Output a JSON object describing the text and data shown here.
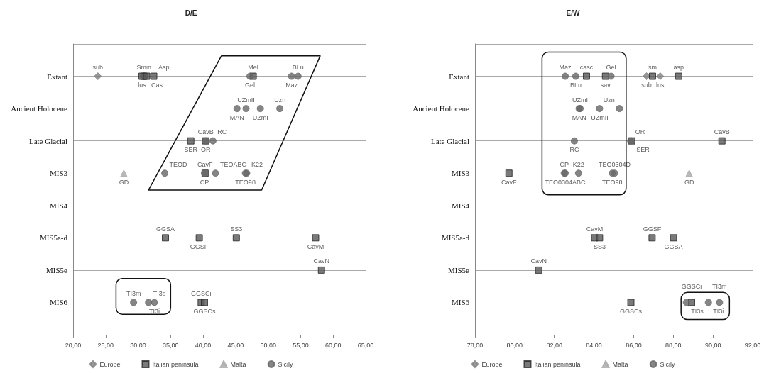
{
  "chart_data": [
    {
      "type": "scatter",
      "title": "D/E",
      "orientation": "horizontal",
      "grid": "y",
      "legend": "bottom",
      "categories": [
        "Extant",
        "Ancient Holocene",
        "Late Glacial",
        "MIS3",
        "MIS4",
        "MIS5a-d",
        "MIS5e",
        "MIS6"
      ],
      "xlim": [
        20,
        65
      ],
      "xticks": [
        {
          "value": 20,
          "label": "20,00"
        },
        {
          "value": 25,
          "label": "25,00"
        },
        {
          "value": 30,
          "label": "30,00"
        },
        {
          "value": 35,
          "label": "35,00"
        },
        {
          "value": 40,
          "label": "40,00"
        },
        {
          "value": 45,
          "label": "45,00"
        },
        {
          "value": 50,
          "label": "50,00"
        },
        {
          "value": 55,
          "label": "55,00"
        },
        {
          "value": 60,
          "label": "60,00"
        },
        {
          "value": 65,
          "label": "65,00"
        }
      ],
      "series": [
        {
          "name": "Europe",
          "color": "#7f7f7f",
          "marker": "diamond",
          "values": [
            23.8,
            null,
            null,
            null,
            null,
            null,
            null,
            null
          ],
          "value_labels": [
            "sub",
            null,
            null,
            null,
            null,
            null,
            null,
            null
          ]
        },
        {
          "name": "Italian peninsula",
          "color": "#595959",
          "marker": "square",
          "values": [
            30.6,
            null,
            38.1,
            40.3,
            null,
            34.2,
            58.2,
            39.7
          ],
          "value_labels": [
            "lus",
            null,
            "SER",
            "CavF",
            null,
            "GGSA",
            "CavN",
            "GGSCi"
          ]
        },
        {
          "color": "#595959",
          "marker": "square",
          "values": [
            30.9,
            null,
            40.4,
            null,
            null,
            39.4,
            null,
            40.2
          ],
          "value_labels": [
            "Smin",
            null,
            "CavB",
            null,
            null,
            "GGSF",
            null,
            "GGSCs"
          ]
        },
        {
          "color": "#595959",
          "marker": "square",
          "values": [
            31.3,
            null,
            null,
            null,
            null,
            45.1,
            null,
            null
          ],
          "value_labels": [
            "Cas",
            null,
            null,
            null,
            null,
            "SS3",
            null,
            null
          ]
        },
        {
          "color": "#595959",
          "marker": "square",
          "values": [
            32.4,
            null,
            null,
            null,
            null,
            57.3,
            null,
            null
          ],
          "value_labels": [
            "Asp",
            null,
            null,
            null,
            null,
            "CavM",
            null,
            null
          ]
        },
        {
          "color": "#595959",
          "marker": "square",
          "values": [
            47.7,
            null,
            null,
            null,
            null,
            null,
            null,
            null
          ],
          "value_labels": [
            "Mel",
            null,
            null,
            null,
            null,
            null,
            null,
            null
          ]
        },
        {
          "name": "Malta",
          "color": "#a6a6a6",
          "marker": "triangle",
          "values": [
            null,
            null,
            null,
            27.8,
            null,
            null,
            null,
            null
          ],
          "value_labels": [
            null,
            null,
            null,
            "GD",
            null,
            null,
            null,
            null
          ]
        },
        {
          "name": "Sicily",
          "color": "#666666",
          "marker": "circle",
          "values": [
            47.2,
            45.2,
            40.4,
            34.1,
            null,
            null,
            null,
            29.3
          ],
          "value_labels": [
            "Gel",
            "MAN",
            "OR",
            "TEOD",
            null,
            null,
            null,
            "TI3m"
          ]
        },
        {
          "color": "#666666",
          "marker": "circle",
          "values": [
            53.6,
            46.6,
            41.5,
            40.2,
            null,
            null,
            null,
            31.6
          ],
          "value_labels": [
            "Maz",
            "UZmII",
            "RC",
            "CP",
            null,
            null,
            null,
            "TI3s"
          ]
        },
        {
          "color": "#666666",
          "marker": "circle",
          "values": [
            54.6,
            48.8,
            null,
            41.9,
            null,
            null,
            null,
            32.5
          ],
          "value_labels": [
            "BLu",
            "UZmI",
            null,
            "TEOABC",
            null,
            null,
            null,
            "TI3i"
          ]
        },
        {
          "color": "#666666",
          "marker": "circle",
          "values": [
            null,
            51.8,
            null,
            46.5,
            null,
            null,
            null,
            null
          ],
          "value_labels": [
            null,
            "Uzn",
            null,
            "TEO98",
            null,
            null,
            null,
            null
          ]
        },
        {
          "color": "#666666",
          "marker": "circle",
          "values": [
            null,
            null,
            null,
            46.7,
            null,
            null,
            null,
            null
          ],
          "value_labels": [
            null,
            null,
            null,
            "K22",
            null,
            null,
            null,
            null
          ]
        }
      ]
    },
    {
      "type": "scatter",
      "title": "E/W",
      "orientation": "horizontal",
      "grid": "y",
      "legend": "bottom",
      "categories": [
        "Extant",
        "Ancient Holocene",
        "Late Glacial",
        "MIS3",
        "MIS4",
        "MIS5a-d",
        "MIS5e",
        "MIS6"
      ],
      "xlim": [
        78,
        92
      ],
      "xticks": [
        {
          "value": 78,
          "label": "78,00"
        },
        {
          "value": 80,
          "label": "80,00"
        },
        {
          "value": 82,
          "label": "82,00"
        },
        {
          "value": 84,
          "label": "84,00"
        },
        {
          "value": 86,
          "label": "86,00"
        },
        {
          "value": 88,
          "label": "88,00"
        },
        {
          "value": 90,
          "label": "90,00"
        },
        {
          "value": 92,
          "label": "92,00"
        }
      ],
      "series": [
        {
          "name": "Europe",
          "color": "#7f7f7f",
          "marker": "diamond",
          "values": [
            86.65,
            null,
            null,
            null,
            null,
            null,
            null,
            null
          ],
          "value_labels": [
            "sub",
            null,
            null,
            null,
            null,
            null,
            null,
            null
          ]
        },
        {
          "color": "#7f7f7f",
          "marker": "diamond",
          "values": [
            87.34,
            null,
            null,
            null,
            null,
            null,
            null,
            null
          ],
          "value_labels": [
            "lus",
            null,
            null,
            null,
            null,
            null,
            null,
            null
          ]
        },
        {
          "name": "Italian peninsula",
          "color": "#595959",
          "marker": "square",
          "values": [
            83.62,
            null,
            85.9,
            79.71,
            null,
            84.03,
            81.21,
            85.86
          ],
          "value_labels": [
            "casc",
            null,
            "SER",
            "CavF",
            null,
            "CavM",
            "CavN",
            "GGSCs"
          ]
        },
        {
          "color": "#595959",
          "marker": "square",
          "values": [
            84.58,
            null,
            90.45,
            null,
            null,
            84.28,
            null,
            88.92
          ],
          "value_labels": [
            "sav",
            null,
            "CavB",
            null,
            null,
            "SS3",
            null,
            "GGSCi"
          ]
        },
        {
          "color": "#595959",
          "marker": "square",
          "values": [
            86.95,
            null,
            null,
            null,
            null,
            86.93,
            null,
            null
          ],
          "value_labels": [
            "sm",
            null,
            null,
            null,
            null,
            "GGSF",
            null,
            null
          ]
        },
        {
          "color": "#595959",
          "marker": "square",
          "values": [
            88.27,
            null,
            null,
            null,
            null,
            88.01,
            null,
            null
          ],
          "value_labels": [
            "asp",
            null,
            null,
            null,
            null,
            "GGSA",
            null,
            null
          ]
        },
        {
          "name": "Malta",
          "color": "#a6a6a6",
          "marker": "triangle",
          "values": [
            null,
            null,
            null,
            88.8,
            null,
            null,
            null,
            null
          ],
          "value_labels": [
            null,
            null,
            null,
            "GD",
            null,
            null,
            null,
            null
          ]
        },
        {
          "name": "Sicily",
          "color": "#666666",
          "marker": "circle",
          "values": [
            82.55,
            83.25,
            83.01,
            82.5,
            null,
            null,
            null,
            88.66
          ],
          "value_labels": [
            "Maz",
            "MAN",
            "RC",
            "CP",
            null,
            null,
            null,
            "TI3s"
          ]
        },
        {
          "color": "#666666",
          "marker": "circle",
          "values": [
            83.08,
            83.3,
            85.85,
            82.55,
            null,
            null,
            null,
            89.77
          ],
          "value_labels": [
            "BLu",
            "UZmI",
            "OR",
            "TEO0304ABC",
            null,
            null,
            null,
            "TI3i"
          ]
        },
        {
          "color": "#666666",
          "marker": "circle",
          "values": [
            84.86,
            84.28,
            null,
            83.22,
            null,
            null,
            null,
            90.33
          ],
          "value_labels": [
            "Gel",
            "UZmII",
            null,
            "K22",
            null,
            null,
            null,
            "TI3m"
          ]
        },
        {
          "color": "#666666",
          "marker": "circle",
          "values": [
            null,
            85.28,
            null,
            84.92,
            null,
            null,
            null,
            null
          ],
          "value_labels": [
            null,
            "Uzn",
            null,
            "TEO98",
            null,
            null,
            null,
            null
          ]
        },
        {
          "color": "#666666",
          "marker": "circle",
          "values": [
            null,
            null,
            null,
            85.04,
            null,
            null,
            null,
            null
          ],
          "value_labels": [
            null,
            null,
            null,
            "TEO0304D",
            null,
            null,
            null,
            null
          ]
        }
      ]
    }
  ]
}
